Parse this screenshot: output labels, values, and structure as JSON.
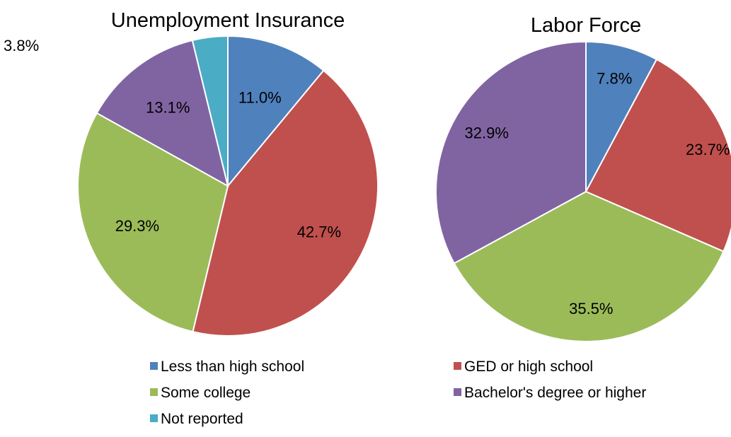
{
  "colors": {
    "less_than_high_school": "#4f81bd",
    "ged_or_high_school": "#c0504d",
    "some_college": "#9bbb59",
    "bachelors_or_higher": "#8064a2",
    "not_reported": "#4bacc6",
    "slice_border": "#ffffff"
  },
  "legend": {
    "placement": "bottom",
    "items": [
      {
        "label": "Less than high school",
        "color": "#4f81bd"
      },
      {
        "label": "GED or high school",
        "color": "#c0504d"
      },
      {
        "label": "Some college",
        "color": "#9bbb59"
      },
      {
        "label": "Bachelor's degree or higher",
        "color": "#8064a2"
      },
      {
        "label": "Not reported",
        "color": "#4bacc6"
      }
    ]
  },
  "chart_data": [
    {
      "type": "pie",
      "title": "Unemployment Insurance",
      "slices": [
        {
          "category": "Less than high school",
          "value": 11.0,
          "label": "11.0%",
          "color": "#4f81bd"
        },
        {
          "category": "GED or high school",
          "value": 42.7,
          "label": "42.7%",
          "color": "#c0504d"
        },
        {
          "category": "Some college",
          "value": 29.3,
          "label": "29.3%",
          "color": "#9bbb59"
        },
        {
          "category": "Bachelor's degree or higher",
          "value": 13.1,
          "label": "13.1%",
          "color": "#8064a2"
        },
        {
          "category": "Not reported",
          "value": 3.8,
          "label": "3.8%",
          "color": "#4bacc6"
        }
      ]
    },
    {
      "type": "pie",
      "title": "Labor Force",
      "slices": [
        {
          "category": "Less than high school",
          "value": 7.8,
          "label": "7.8%",
          "color": "#4f81bd"
        },
        {
          "category": "GED or high school",
          "value": 23.7,
          "label": "23.7%",
          "color": "#c0504d"
        },
        {
          "category": "Some college",
          "value": 35.5,
          "label": "35.5%",
          "color": "#9bbb59"
        },
        {
          "category": "Bachelor's degree or higher",
          "value": 32.9,
          "label": "32.9%",
          "color": "#8064a2"
        }
      ]
    }
  ]
}
